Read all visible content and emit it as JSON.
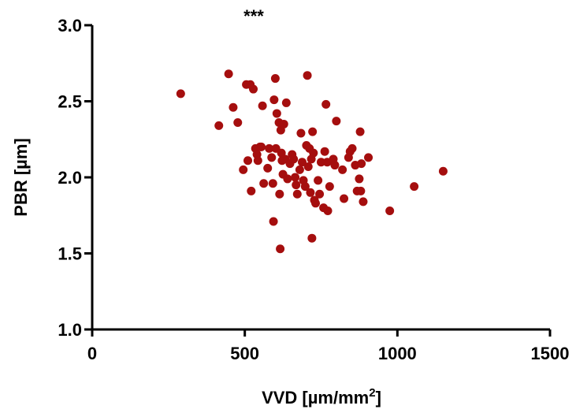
{
  "chart_data": {
    "type": "scatter",
    "annotation": "***",
    "xlabel_main": "VVD [µm/mm",
    "xlabel_sup": "2",
    "xlabel_close": "]",
    "ylabel": "PBR [µm]",
    "xlim": [
      0,
      1500
    ],
    "ylim": [
      1.0,
      3.0
    ],
    "xticks": [
      0,
      500,
      1000,
      1500
    ],
    "xtick_labels": [
      "0",
      "500",
      "1000",
      "1500"
    ],
    "yticks": [
      1.0,
      1.5,
      2.0,
      2.5,
      3.0
    ],
    "ytick_labels": [
      "1.0",
      "1.5",
      "2.0",
      "2.5",
      "3.0"
    ],
    "grid": false,
    "marker_color": "#a50e0e",
    "points": [
      {
        "x": 290,
        "y": 2.55
      },
      {
        "x": 415,
        "y": 2.34
      },
      {
        "x": 447,
        "y": 2.68
      },
      {
        "x": 462,
        "y": 2.46
      },
      {
        "x": 477,
        "y": 2.36
      },
      {
        "x": 495,
        "y": 2.05
      },
      {
        "x": 505,
        "y": 2.61
      },
      {
        "x": 510,
        "y": 2.11
      },
      {
        "x": 518,
        "y": 2.61
      },
      {
        "x": 521,
        "y": 1.91
      },
      {
        "x": 528,
        "y": 2.58
      },
      {
        "x": 535,
        "y": 2.19
      },
      {
        "x": 540,
        "y": 2.15
      },
      {
        "x": 543,
        "y": 2.11
      },
      {
        "x": 550,
        "y": 2.2
      },
      {
        "x": 554,
        "y": 2.2
      },
      {
        "x": 558,
        "y": 2.47
      },
      {
        "x": 562,
        "y": 1.96
      },
      {
        "x": 575,
        "y": 2.06
      },
      {
        "x": 580,
        "y": 2.19
      },
      {
        "x": 588,
        "y": 2.13
      },
      {
        "x": 592,
        "y": 1.96
      },
      {
        "x": 594,
        "y": 1.71
      },
      {
        "x": 596,
        "y": 2.51
      },
      {
        "x": 600,
        "y": 2.65
      },
      {
        "x": 602,
        "y": 2.19
      },
      {
        "x": 605,
        "y": 2.42
      },
      {
        "x": 612,
        "y": 2.36
      },
      {
        "x": 614,
        "y": 1.89
      },
      {
        "x": 616,
        "y": 1.53
      },
      {
        "x": 618,
        "y": 2.31
      },
      {
        "x": 620,
        "y": 2.16
      },
      {
        "x": 622,
        "y": 2.11
      },
      {
        "x": 625,
        "y": 2.02
      },
      {
        "x": 628,
        "y": 2.35
      },
      {
        "x": 632,
        "y": 2.12
      },
      {
        "x": 636,
        "y": 2.49
      },
      {
        "x": 640,
        "y": 1.99
      },
      {
        "x": 648,
        "y": 2.09
      },
      {
        "x": 655,
        "y": 2.15
      },
      {
        "x": 660,
        "y": 2.12
      },
      {
        "x": 665,
        "y": 2.0
      },
      {
        "x": 668,
        "y": 1.95
      },
      {
        "x": 672,
        "y": 1.89
      },
      {
        "x": 680,
        "y": 2.05
      },
      {
        "x": 684,
        "y": 2.29
      },
      {
        "x": 688,
        "y": 2.1
      },
      {
        "x": 692,
        "y": 1.98
      },
      {
        "x": 698,
        "y": 1.94
      },
      {
        "x": 702,
        "y": 2.21
      },
      {
        "x": 705,
        "y": 2.67
      },
      {
        "x": 708,
        "y": 2.07
      },
      {
        "x": 712,
        "y": 2.19
      },
      {
        "x": 715,
        "y": 1.9
      },
      {
        "x": 718,
        "y": 2.12
      },
      {
        "x": 720,
        "y": 1.6
      },
      {
        "x": 722,
        "y": 2.3
      },
      {
        "x": 725,
        "y": 2.16
      },
      {
        "x": 728,
        "y": 1.85
      },
      {
        "x": 732,
        "y": 1.83
      },
      {
        "x": 740,
        "y": 1.98
      },
      {
        "x": 745,
        "y": 1.89
      },
      {
        "x": 750,
        "y": 2.1
      },
      {
        "x": 758,
        "y": 1.8
      },
      {
        "x": 762,
        "y": 2.17
      },
      {
        "x": 766,
        "y": 2.48
      },
      {
        "x": 770,
        "y": 2.1
      },
      {
        "x": 772,
        "y": 1.78
      },
      {
        "x": 778,
        "y": 1.94
      },
      {
        "x": 790,
        "y": 2.12
      },
      {
        "x": 795,
        "y": 2.08
      },
      {
        "x": 800,
        "y": 2.37
      },
      {
        "x": 820,
        "y": 2.05
      },
      {
        "x": 825,
        "y": 1.86
      },
      {
        "x": 840,
        "y": 2.13
      },
      {
        "x": 845,
        "y": 2.17
      },
      {
        "x": 852,
        "y": 2.19
      },
      {
        "x": 862,
        "y": 2.08
      },
      {
        "x": 868,
        "y": 1.91
      },
      {
        "x": 875,
        "y": 1.99
      },
      {
        "x": 878,
        "y": 2.3
      },
      {
        "x": 880,
        "y": 1.91
      },
      {
        "x": 882,
        "y": 2.09
      },
      {
        "x": 888,
        "y": 1.84
      },
      {
        "x": 905,
        "y": 2.13
      },
      {
        "x": 975,
        "y": 1.78
      },
      {
        "x": 1055,
        "y": 1.94
      },
      {
        "x": 1150,
        "y": 2.04
      }
    ]
  }
}
